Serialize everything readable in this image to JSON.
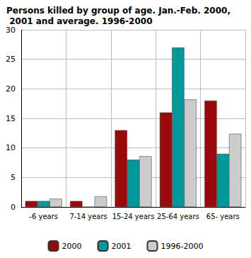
{
  "chart_data": {
    "type": "bar",
    "title": "Persons killed by group of age. Jan.-Feb. 2000, 2001 and average. 1996-2000",
    "categories": [
      "-6 years",
      "7-14 years",
      "15-24 years",
      "25-64 years",
      "65- years"
    ],
    "series": [
      {
        "name": "2000",
        "color": "#9b0a0a",
        "values": [
          1,
          1,
          13,
          16,
          18
        ]
      },
      {
        "name": "2001",
        "color": "#009999",
        "values": [
          1,
          0,
          8,
          27,
          9
        ]
      },
      {
        "name": "1996-2000",
        "color": "#cccccc",
        "values": [
          1.4,
          1.8,
          8.6,
          18.2,
          12.4
        ]
      }
    ],
    "ylim": [
      0,
      30
    ],
    "yticks": [
      0,
      5,
      10,
      15,
      20,
      25,
      30
    ],
    "grid": true,
    "legend": "bottom"
  }
}
